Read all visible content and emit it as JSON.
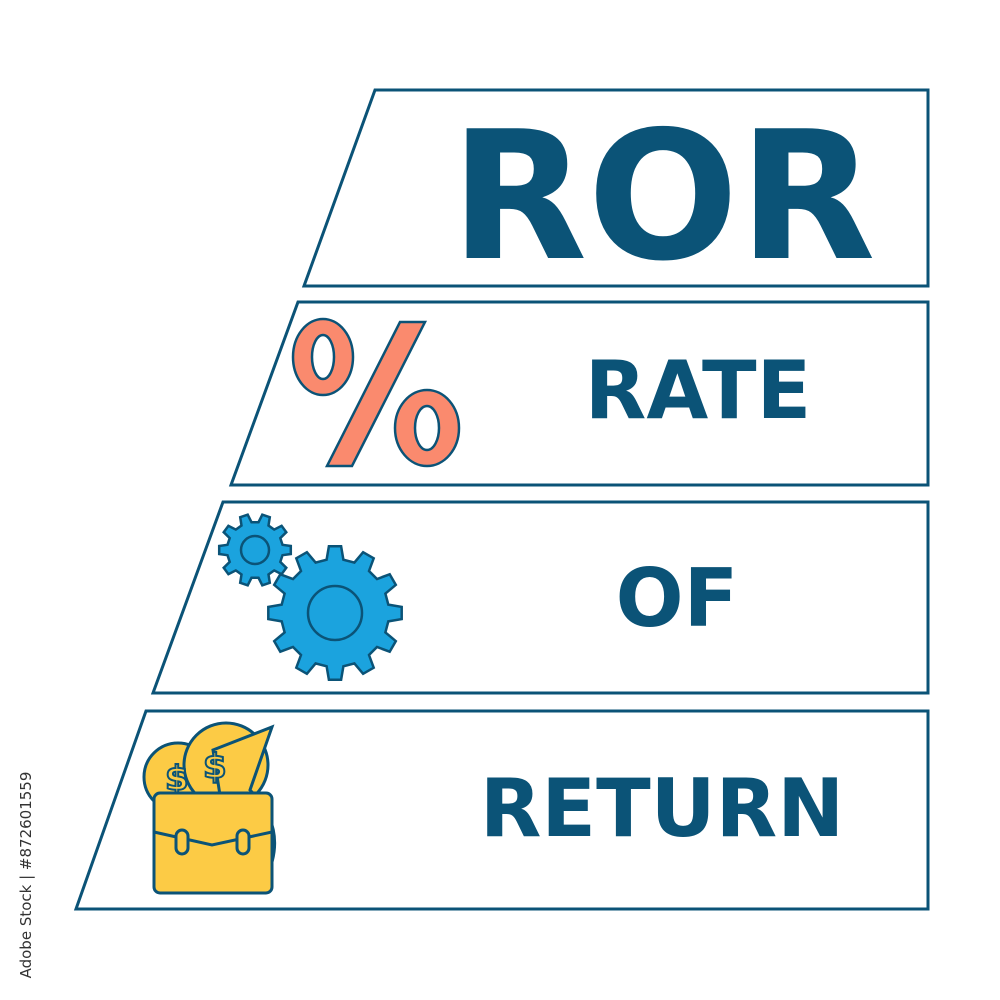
{
  "acronym": "ROR",
  "rows": [
    {
      "word": "RATE",
      "icon": "percent-icon"
    },
    {
      "word": "OF",
      "icon": "gears-icon"
    },
    {
      "word": "RETURN",
      "icon": "briefcase-money-icon"
    }
  ],
  "watermark": "Adobe Stock | #872601559",
  "colors": {
    "outline": "#0b5377",
    "text": "#0b5377",
    "percent": "#fa8a6e",
    "gears": "#1ba3de",
    "briefcase": "#fccb45"
  }
}
